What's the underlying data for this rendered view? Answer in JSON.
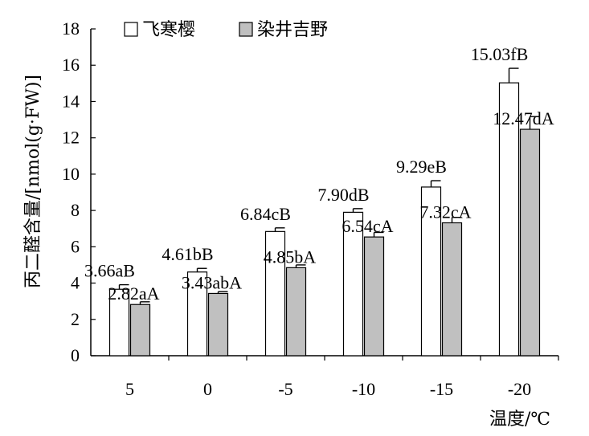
{
  "chart_data": {
    "type": "bar",
    "categories": [
      "5",
      "0",
      "-5",
      "-10",
      "-15",
      "-20"
    ],
    "series": [
      {
        "name": "飞寒樱",
        "color": "#ffffff",
        "values": [
          3.66,
          4.61,
          6.84,
          7.9,
          9.29,
          15.03
        ],
        "errors": [
          0.25,
          0.2,
          0.2,
          0.2,
          0.35,
          0.8
        ],
        "labels": [
          "3.66aB",
          "4.61bB",
          "6.84cB",
          "7.90dB",
          "9.29eB",
          "15.03fB"
        ]
      },
      {
        "name": "染井吉野",
        "color": "#c0c0c0",
        "values": [
          2.82,
          3.43,
          4.85,
          6.54,
          7.32,
          12.47
        ],
        "errors": [
          0.15,
          0.1,
          0.15,
          0.25,
          0.3,
          0.7
        ],
        "labels": [
          "2.82aA",
          "3.43abA",
          "4.85bA",
          "6.54cA",
          "7.32cA",
          "12.47dA"
        ]
      }
    ],
    "yticks": [
      "0",
      "2",
      "4",
      "6",
      "8",
      "10",
      "12",
      "14",
      "16",
      "18"
    ],
    "ylim": [
      0,
      18
    ],
    "xlabel": "温度/℃",
    "ylabel": "丙二醛含量/[nmol(g·FW)]",
    "legend_position": "top-left",
    "grid": false
  }
}
